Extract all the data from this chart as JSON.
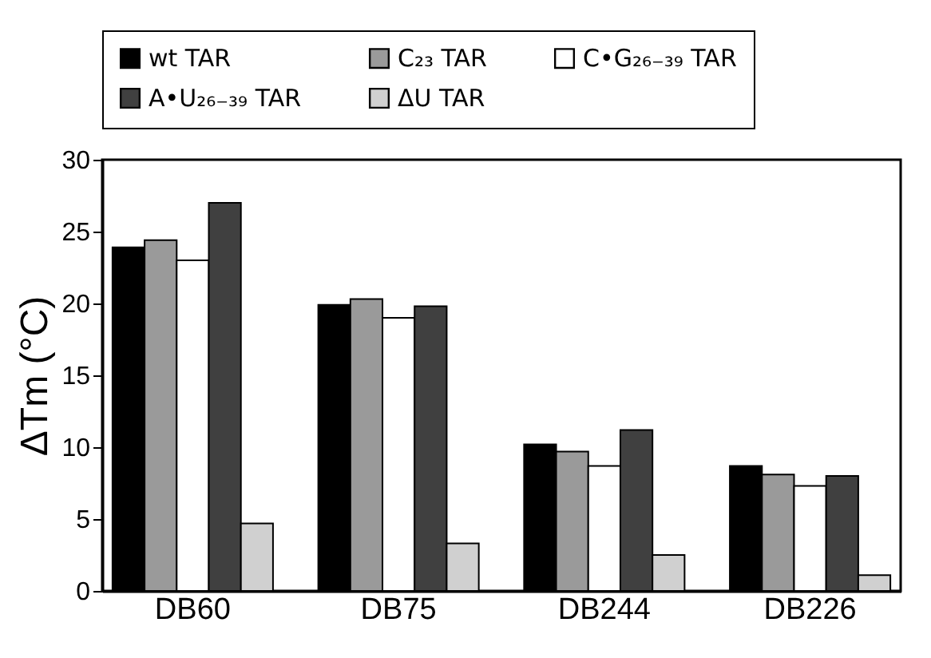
{
  "chart_data": {
    "type": "bar",
    "ylabel": "ΔTm (°C)",
    "categories": [
      "DB60",
      "DB75",
      "DB244",
      "DB226"
    ],
    "series": [
      {
        "name": "wt TAR",
        "color": "#000000",
        "values": [
          23.9,
          19.9,
          10.2,
          8.7
        ]
      },
      {
        "name": "C₂₃ TAR",
        "color": "#9a9a9a",
        "values": [
          24.4,
          20.3,
          9.7,
          8.1
        ]
      },
      {
        "name": "C•G₂₆₋₃₉ TAR",
        "color": "#ffffff",
        "values": [
          23.0,
          19.0,
          8.7,
          7.3
        ]
      },
      {
        "name": "A•U₂₆₋₃₉ TAR",
        "color": "#404040",
        "values": [
          27.0,
          19.8,
          11.2,
          8.0
        ]
      },
      {
        "name": "ΔU TAR",
        "color": "#d0d0d0",
        "values": [
          4.7,
          3.3,
          2.5,
          1.1
        ]
      }
    ],
    "ylim": [
      0,
      30
    ],
    "yticks": [
      0,
      5,
      10,
      15,
      20,
      25,
      30
    ],
    "grid": false,
    "legend": "top"
  }
}
